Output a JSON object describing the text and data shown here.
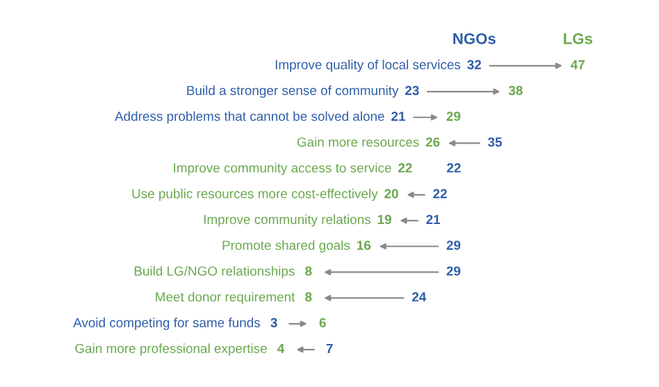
{
  "chart_data": {
    "type": "other",
    "data_labels": true,
    "categories": [
      "Improve quality of local services",
      "Build a stronger sense of community",
      "Address problems that cannot be solved alone",
      "Gain more resources",
      "Improve community access to service",
      "Use public resources more cost-effectively",
      "Improve community relations",
      "Promote shared goals",
      "Build LG/NGO relationships",
      "Meet donor requirement",
      "Avoid competing for same funds",
      "Gain more professional expertise"
    ],
    "series": [
      {
        "name": "NGOs",
        "color": "#2f5ea8",
        "values": [
          32,
          23,
          21,
          35,
          22,
          22,
          21,
          29,
          29,
          24,
          3,
          7
        ]
      },
      {
        "name": "LGs",
        "color": "#6aa84f",
        "values": [
          47,
          38,
          29,
          26,
          22,
          20,
          19,
          16,
          8,
          8,
          6,
          4
        ]
      }
    ]
  }
}
